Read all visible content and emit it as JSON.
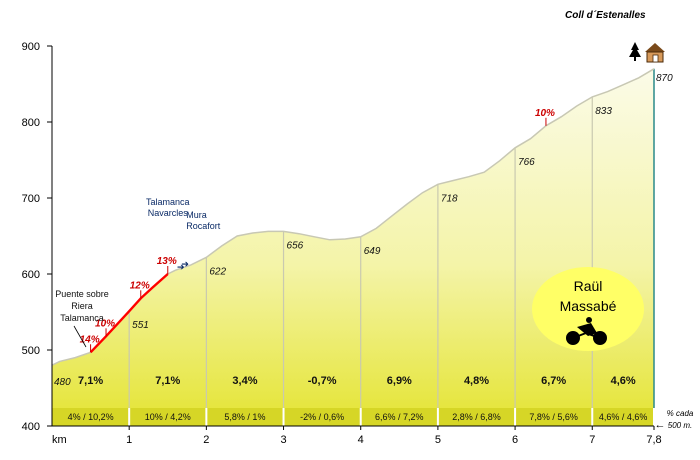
{
  "chart_data": {
    "type": "area",
    "title": "Coll d´Estenalles",
    "xlabel": "km",
    "ylabel": "",
    "xlim": [
      0,
      7.8
    ],
    "ylim": [
      400,
      900
    ],
    "x_ticks": [
      "1",
      "2",
      "3",
      "4",
      "5",
      "6",
      "7",
      "7,8"
    ],
    "x_tick_values": [
      1,
      2,
      3,
      4,
      5,
      6,
      7,
      7.8
    ],
    "y_ticks": [
      400,
      500,
      600,
      700,
      800,
      900
    ],
    "profile": {
      "x": [
        0,
        0.1,
        0.3,
        0.5,
        0.7,
        1.0,
        1.15,
        1.3,
        1.5,
        1.6,
        1.8,
        2.0,
        2.2,
        2.4,
        2.6,
        2.8,
        3.0,
        3.2,
        3.4,
        3.6,
        3.8,
        4.0,
        4.2,
        4.4,
        4.6,
        4.8,
        5.0,
        5.2,
        5.4,
        5.6,
        5.8,
        6.0,
        6.2,
        6.4,
        6.6,
        6.8,
        7.0,
        7.2,
        7.4,
        7.6,
        7.8
      ],
      "y": [
        480,
        485,
        490,
        497,
        518,
        551,
        568,
        582,
        600,
        605,
        612,
        622,
        637,
        650,
        654,
        656,
        656,
        653,
        649,
        645,
        646,
        649,
        660,
        676,
        692,
        707,
        718,
        723,
        728,
        734,
        749,
        766,
        778,
        795,
        807,
        821,
        833,
        840,
        849,
        858,
        870
      ]
    },
    "steep_segment": {
      "x": [
        0.5,
        1.5
      ],
      "color": "#ff0000"
    },
    "km_elevations": [
      {
        "km": 0,
        "value": "480"
      },
      {
        "km": 1,
        "value": "551"
      },
      {
        "km": 2,
        "value": "622"
      },
      {
        "km": 3,
        "value": "656"
      },
      {
        "km": 4,
        "value": "649"
      },
      {
        "km": 5,
        "value": "718"
      },
      {
        "km": 6,
        "value": "766"
      },
      {
        "km": 7,
        "value": "833"
      },
      {
        "km": 7.8,
        "value": "870"
      }
    ],
    "km_gradients": [
      {
        "from": 0,
        "to": 1,
        "label": "7,1%"
      },
      {
        "from": 1,
        "to": 2,
        "label": "7,1%"
      },
      {
        "from": 2,
        "to": 3,
        "label": "3,4%"
      },
      {
        "from": 3,
        "to": 4,
        "label": "-0,7%"
      },
      {
        "from": 4,
        "to": 5,
        "label": "6,9%"
      },
      {
        "from": 5,
        "to": 6,
        "label": "4,8%"
      },
      {
        "from": 6,
        "to": 7,
        "label": "6,7%"
      },
      {
        "from": 7,
        "to": 7.8,
        "label": "4,6%"
      }
    ],
    "half_km_gradients": [
      {
        "from": 0,
        "to": 1,
        "label": "4%  /  10,2%"
      },
      {
        "from": 1,
        "to": 2,
        "label": "10%  /  4,2%"
      },
      {
        "from": 2,
        "to": 3,
        "label": "5,8%  /  1%"
      },
      {
        "from": 3,
        "to": 4,
        "label": "-2%  /  0,6%"
      },
      {
        "from": 4,
        "to": 5,
        "label": "6,6%  /  7,2%"
      },
      {
        "from": 5,
        "to": 6,
        "label": "2,8%  /  6,8%"
      },
      {
        "from": 6,
        "to": 7,
        "label": "7,8%  /  5,6%"
      },
      {
        "from": 7,
        "to": 7.8,
        "label": "4,6% / 4,6%"
      }
    ],
    "half_km_note": [
      "% cada",
      "500 m."
    ],
    "steep_markers": [
      {
        "km": 0.5,
        "elev": 497,
        "label": "14%"
      },
      {
        "km": 0.7,
        "elev": 518,
        "label": "10%"
      },
      {
        "km": 1.15,
        "elev": 568,
        "label": "12%"
      },
      {
        "km": 1.5,
        "elev": 600,
        "label": "13%"
      },
      {
        "km": 6.4,
        "elev": 795,
        "label": "10%"
      }
    ],
    "places": [
      {
        "km": 0,
        "lines": [
          "Puente sobre",
          "Riera",
          "Talamanca"
        ]
      },
      {
        "km": 1.5,
        "lines": [
          "Talamanca",
          "Navarcles"
        ]
      },
      {
        "km": 1.7,
        "lines": [
          "Mura",
          "Rocafort"
        ]
      }
    ]
  },
  "author": {
    "line1": "Raül",
    "line2": "Massabé"
  },
  "icons": {
    "summit": "tree-and-refuge-icon",
    "rider": "cyclist-icon"
  },
  "colors": {
    "fill_top": "#fbfbe6",
    "fill_bottom": "#e2e22e",
    "band": "#d6d626",
    "profile_line": "#c8c8b4",
    "steep": "#ff0000",
    "author_badge": "#ffff66",
    "summit_line": "#2a8a8a"
  }
}
